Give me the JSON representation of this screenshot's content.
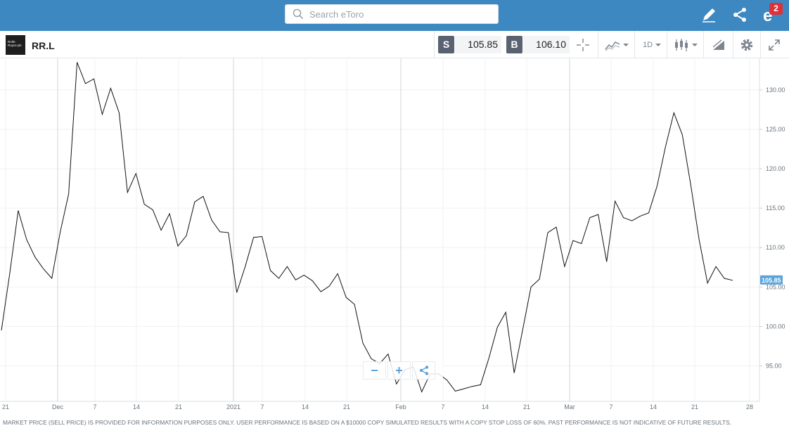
{
  "topbar": {
    "search_placeholder": "Search eToro",
    "notification_count": "2",
    "icons": [
      "search-icon",
      "edit-icon",
      "share-icon",
      "notifications-icon"
    ]
  },
  "instrument": {
    "logo_text": "Rolls-Royce plc",
    "symbol": "RR.L",
    "sell_label": "S",
    "sell_price": "105.85",
    "buy_label": "B",
    "buy_price": "106.10",
    "timeframe": "1D"
  },
  "colors": {
    "topbar": "#3d88c1",
    "accent": "#5aa3dc",
    "price_tag": "#5aa3dc",
    "line": "#111111"
  },
  "chart_data": {
    "type": "line",
    "title": "",
    "xlabel": "",
    "ylabel": "",
    "ylim": [
      90.5,
      134
    ],
    "y_ticks": [
      95,
      100,
      105,
      110,
      115,
      120,
      125,
      130
    ],
    "y_tick_labels": [
      "95.00",
      "100.00",
      "105.00",
      "110.00",
      "115.00",
      "120.00",
      "125.00",
      "130.00"
    ],
    "x_tick_labels": [
      "21",
      "Dec",
      "7",
      "14",
      "21",
      "2021",
      "7",
      "14",
      "21",
      "Feb",
      "7",
      "14",
      "21",
      "Mar",
      "7",
      "14",
      "21",
      "28"
    ],
    "current_price_label": "105.85",
    "current_price": 105.85,
    "grid": true,
    "series": [
      {
        "values": [
          99.5,
          106.8,
          114.7,
          111.0,
          108.8,
          107.3,
          106.1,
          112.0,
          116.8,
          133.5,
          130.8,
          131.4,
          126.9,
          130.2,
          127.1,
          117.0,
          119.4,
          115.5,
          114.8,
          112.2,
          114.3,
          110.2,
          111.5,
          115.8,
          116.5,
          113.5,
          112.0,
          111.9,
          104.3,
          107.6,
          111.3,
          111.4,
          107.1,
          106.1,
          107.6,
          105.9,
          106.5,
          105.8,
          104.4,
          105.1,
          106.7,
          103.7,
          102.8,
          97.9,
          95.9,
          95.3,
          96.5,
          92.7,
          94.5,
          94.9,
          91.7,
          94.0,
          94.0,
          93.2,
          91.8,
          92.1,
          92.4,
          92.6,
          96.0,
          99.9,
          101.8,
          94.1,
          99.5,
          105.0,
          106.0,
          111.9,
          112.6,
          107.6,
          110.9,
          110.5,
          113.8,
          114.2,
          108.2,
          115.9,
          113.8,
          113.4,
          114.0,
          114.4,
          117.8,
          122.8,
          127.1,
          124.3,
          118.0,
          111.0,
          105.5,
          107.6,
          106.1,
          105.85
        ]
      }
    ]
  },
  "disclaimer": "MARKET PRICE (SELL PRICE) IS PROVIDED FOR INFORMATION PURPOSES ONLY. USER PERFORMANCE IS BASED ON A $10000 COPY SIMULATED RESULTS WITH A COPY STOP LOSS OF 60%. PAST PERFORMANCE IS NOT INDICATIVE OF FUTURE RESULTS."
}
